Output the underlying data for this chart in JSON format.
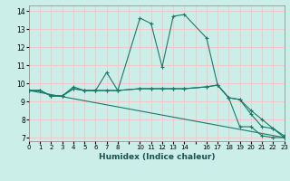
{
  "title": "",
  "xlabel": "Humidex (Indice chaleur)",
  "background_color": "#cceee8",
  "grid_color": "#f5c8c8",
  "line_color": "#1a7a6a",
  "xlim": [
    0,
    23
  ],
  "ylim": [
    6.8,
    14.3
  ],
  "xticks": [
    0,
    1,
    2,
    3,
    4,
    5,
    6,
    7,
    8,
    10,
    11,
    12,
    13,
    14,
    16,
    17,
    18,
    19,
    20,
    21,
    22,
    23
  ],
  "yticks": [
    7,
    8,
    9,
    10,
    11,
    12,
    13,
    14
  ],
  "series": [
    {
      "x": [
        0,
        1,
        2,
        3,
        4,
        5,
        6,
        7,
        8,
        10,
        11,
        12,
        13,
        14,
        16,
        17,
        18,
        19,
        20,
        21,
        22,
        23
      ],
      "y": [
        9.6,
        9.6,
        9.3,
        9.3,
        9.8,
        9.6,
        9.6,
        10.6,
        9.6,
        13.6,
        13.3,
        10.9,
        13.7,
        13.8,
        12.5,
        9.9,
        9.2,
        7.6,
        7.6,
        7.1,
        7.0,
        7.0
      ],
      "marker": true
    },
    {
      "x": [
        0,
        1,
        2,
        3,
        4,
        5,
        6,
        7,
        8,
        10,
        11,
        12,
        13,
        14,
        16,
        17,
        18,
        19,
        20,
        21,
        22,
        23
      ],
      "y": [
        9.6,
        9.6,
        9.3,
        9.3,
        9.7,
        9.6,
        9.6,
        9.6,
        9.6,
        9.7,
        9.7,
        9.7,
        9.7,
        9.7,
        9.8,
        9.9,
        9.2,
        9.1,
        8.3,
        7.6,
        7.5,
        7.1
      ],
      "marker": true
    },
    {
      "x": [
        0,
        1,
        2,
        3,
        4,
        5,
        6,
        7,
        8,
        10,
        11,
        12,
        13,
        14,
        16,
        17,
        18,
        19,
        20,
        21,
        22,
        23
      ],
      "y": [
        9.6,
        9.6,
        9.3,
        9.3,
        9.7,
        9.6,
        9.6,
        9.6,
        9.6,
        9.7,
        9.7,
        9.7,
        9.7,
        9.7,
        9.8,
        9.9,
        9.2,
        9.1,
        8.5,
        8.0,
        7.5,
        7.0
      ],
      "marker": true
    },
    {
      "x": [
        0,
        23
      ],
      "y": [
        9.6,
        7.0
      ],
      "marker": false
    }
  ]
}
